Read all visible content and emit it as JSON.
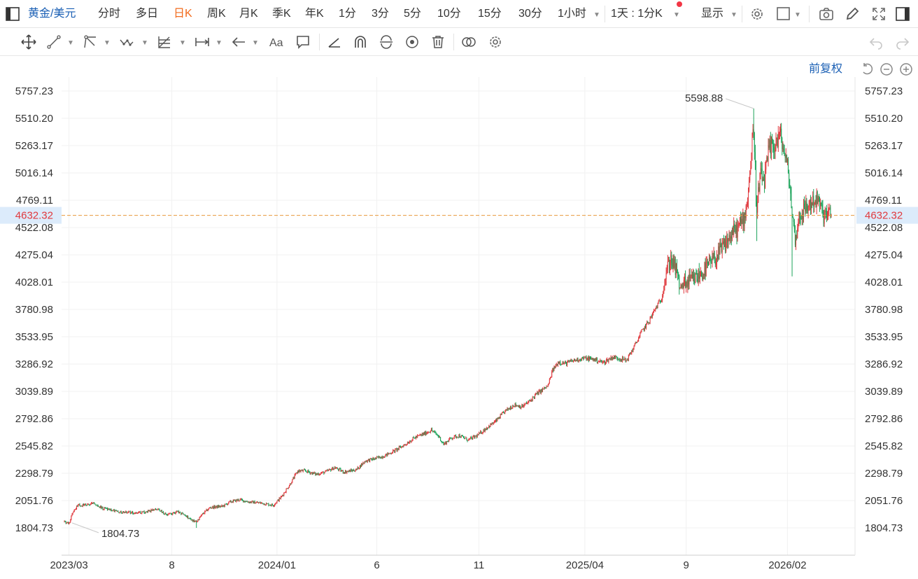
{
  "toolbar": {
    "symbol": "黄金/美元",
    "periods": [
      "分时",
      "多日",
      "日K",
      "周K",
      "月K",
      "季K",
      "年K",
      "1分",
      "3分",
      "5分",
      "10分",
      "15分",
      "30分",
      "1小时"
    ],
    "active_period": "日K",
    "interval_select": "1天 : 1分K",
    "display_label": "显示",
    "colors": {
      "active": "#f26b1d",
      "link": "#1a5fb4",
      "notice_dot": "#f23645"
    },
    "icons": [
      "layout-icon",
      "settings-icon",
      "template-icon",
      "camera-icon",
      "pen-icon",
      "fullscreen-icon",
      "sidebar-toggle-icon"
    ]
  },
  "drawing_toolbar": {
    "icons": [
      "move-icon",
      "line-tool-icon",
      "polyline-tool-icon",
      "wave-tool-icon",
      "fib-tool-icon",
      "measure-tool-icon",
      "arrow-tool-icon",
      "text-tool-icon",
      "note-tool-icon",
      "angle-tool-icon",
      "magnet-icon",
      "sync-icon",
      "visibility-icon",
      "trash-icon",
      "compare-icon",
      "drawing-settings-icon",
      "undo-icon",
      "redo-icon"
    ]
  },
  "chart_controls": {
    "adjust_label": "前复权",
    "icons": [
      "reset-icon",
      "zoom-out-icon",
      "zoom-in-icon"
    ]
  },
  "chart_data": {
    "type": "candlestick",
    "y_ticks": [
      "5757.23",
      "5510.20",
      "5263.17",
      "5016.14",
      "4769.11",
      "4522.08",
      "4275.04",
      "4028.01",
      "3780.98",
      "3533.95",
      "3286.92",
      "3039.89",
      "2792.86",
      "2545.82",
      "2298.79",
      "2051.76",
      "1804.73"
    ],
    "ylim": [
      1804.73,
      5757.23
    ],
    "x_ticks": [
      "2023/03",
      "8",
      "2024/01",
      "6",
      "11",
      "2025/04",
      "9",
      "2026/02"
    ],
    "current_price": "4632.32",
    "max_annotation": "5598.88",
    "min_annotation": "1804.73",
    "colors": {
      "up": "#e0393e",
      "down": "#1ca35a",
      "price_line": "#e79a3c"
    },
    "trend_points": [
      [
        0,
        1860
      ],
      [
        6,
        1840
      ],
      [
        10,
        1940
      ],
      [
        18,
        2010
      ],
      [
        28,
        2010
      ],
      [
        38,
        2030
      ],
      [
        46,
        1990
      ],
      [
        58,
        1970
      ],
      [
        72,
        1950
      ],
      [
        90,
        1940
      ],
      [
        108,
        1950
      ],
      [
        120,
        1975
      ],
      [
        134,
        1920
      ],
      [
        146,
        1950
      ],
      [
        158,
        1920
      ],
      [
        164,
        1880
      ],
      [
        172,
        1860
      ],
      [
        180,
        1930
      ],
      [
        190,
        1990
      ],
      [
        206,
        2000
      ],
      [
        216,
        2040
      ],
      [
        228,
        2060
      ],
      [
        240,
        2040
      ],
      [
        256,
        2030
      ],
      [
        272,
        2010
      ],
      [
        282,
        2080
      ],
      [
        294,
        2200
      ],
      [
        304,
        2320
      ],
      [
        314,
        2320
      ],
      [
        328,
        2290
      ],
      [
        340,
        2310
      ],
      [
        352,
        2350
      ],
      [
        364,
        2310
      ],
      [
        380,
        2330
      ],
      [
        392,
        2410
      ],
      [
        404,
        2430
      ],
      [
        418,
        2460
      ],
      [
        432,
        2510
      ],
      [
        444,
        2560
      ],
      [
        456,
        2620
      ],
      [
        470,
        2660
      ],
      [
        478,
        2690
      ],
      [
        488,
        2630
      ],
      [
        494,
        2560
      ],
      [
        504,
        2620
      ],
      [
        514,
        2640
      ],
      [
        526,
        2600
      ],
      [
        538,
        2640
      ],
      [
        550,
        2710
      ],
      [
        562,
        2770
      ],
      [
        574,
        2860
      ],
      [
        586,
        2920
      ],
      [
        596,
        2900
      ],
      [
        606,
        2950
      ],
      [
        614,
        3010
      ],
      [
        622,
        3050
      ],
      [
        630,
        3090
      ],
      [
        636,
        3230
      ],
      [
        644,
        3310
      ],
      [
        652,
        3290
      ],
      [
        664,
        3320
      ],
      [
        676,
        3340
      ],
      [
        690,
        3330
      ],
      [
        702,
        3300
      ],
      [
        714,
        3350
      ],
      [
        722,
        3340
      ],
      [
        732,
        3320
      ],
      [
        742,
        3440
      ],
      [
        752,
        3580
      ],
      [
        762,
        3680
      ],
      [
        770,
        3790
      ],
      [
        778,
        3880
      ],
      [
        784,
        4120
      ],
      [
        790,
        4240
      ],
      [
        796,
        4150
      ],
      [
        802,
        3980
      ],
      [
        810,
        4020
      ],
      [
        820,
        4050
      ],
      [
        832,
        4120
      ],
      [
        842,
        4200
      ],
      [
        852,
        4280
      ],
      [
        862,
        4380
      ],
      [
        870,
        4470
      ],
      [
        878,
        4520
      ],
      [
        886,
        4620
      ],
      [
        890,
        4800
      ],
      [
        894,
        5100
      ],
      [
        898,
        5450
      ],
      [
        902,
        4640
      ],
      [
        906,
        4980
      ],
      [
        912,
        4950
      ],
      [
        918,
        5220
      ],
      [
        926,
        5280
      ],
      [
        932,
        5360
      ],
      [
        938,
        5200
      ],
      [
        944,
        4980
      ],
      [
        948,
        4650
      ],
      [
        952,
        4420
      ],
      [
        958,
        4640
      ],
      [
        964,
        4680
      ],
      [
        970,
        4720
      ],
      [
        976,
        4770
      ],
      [
        982,
        4760
      ],
      [
        988,
        4640
      ],
      [
        992,
        4632.32
      ]
    ]
  }
}
